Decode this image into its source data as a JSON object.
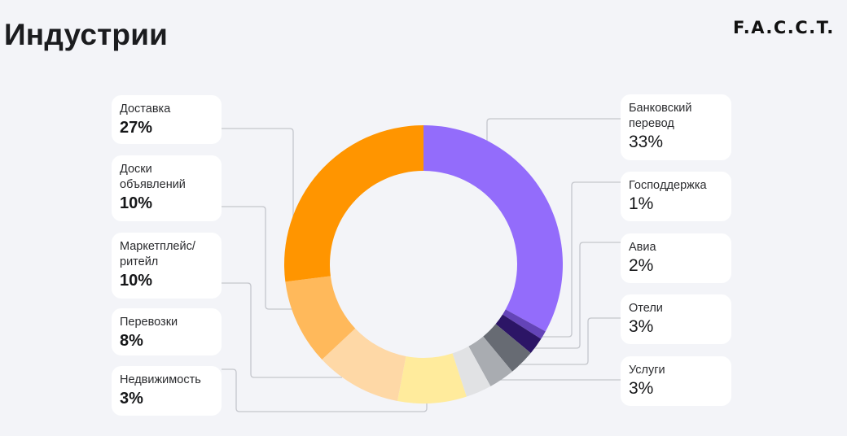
{
  "page": {
    "title": "Индустрии",
    "brand": "F.A.C.C.T."
  },
  "colors": {
    "background": "#F3F4F8",
    "connector": "#C4C6CC"
  },
  "chart_data": {
    "type": "pie",
    "variant": "donut",
    "title": "Индустрии",
    "unit": "%",
    "direction": "clockwise-from-top",
    "slices": [
      {
        "label": "Банковский перевод",
        "value": 33,
        "display": "33%",
        "color": "#936CFB",
        "side": "right"
      },
      {
        "label": "Госпoддержка",
        "value": 1,
        "display": "1%",
        "color": "#6444B8",
        "side": "right"
      },
      {
        "label": "Авиа",
        "value": 2,
        "display": "2%",
        "color": "#2C1566",
        "side": "right"
      },
      {
        "label": "Отели",
        "value": 3,
        "display": "3%",
        "color": "#676B73",
        "side": "right"
      },
      {
        "label": "Услуги",
        "value": 3,
        "display": "3%",
        "color": "#A9ACB1",
        "side": "right"
      },
      {
        "label": "Недвижимость",
        "value": 3,
        "display": "3%",
        "color": "#E1E2E4",
        "side": "left"
      },
      {
        "label": "Перевозки",
        "value": 8,
        "display": "8%",
        "color": "#FFEB9C",
        "side": "left"
      },
      {
        "label": "Маркетплейс/ ритейл",
        "value": 10,
        "display": "10%",
        "color": "#FED8A6",
        "side": "left"
      },
      {
        "label": "Доски объявлений",
        "value": 10,
        "display": "10%",
        "color": "#FFB95B",
        "side": "left"
      },
      {
        "label": "Доставка",
        "value": 27,
        "display": "27%",
        "color": "#FF9500",
        "side": "left"
      }
    ]
  }
}
